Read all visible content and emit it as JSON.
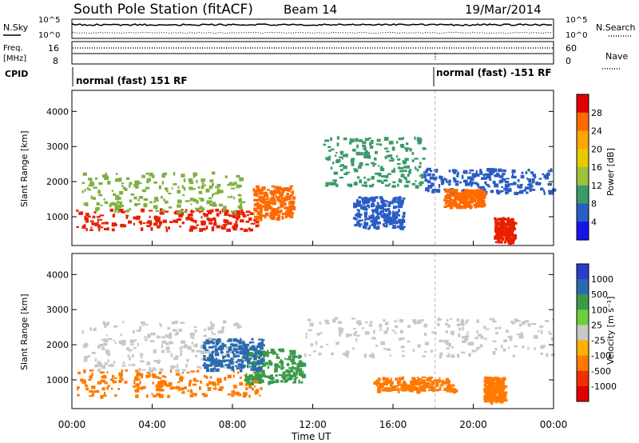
{
  "header": {
    "title": "South Pole Station (fitACF)",
    "beam": "Beam 14",
    "date": "19/Mar/2014"
  },
  "sky_panel": {
    "left_label": "N.Sky",
    "right_label": "N.Search",
    "left_ticks": [
      "10^5",
      "10^0"
    ],
    "right_ticks": [
      "10^5",
      "10^0"
    ]
  },
  "freq_panel": {
    "left_label_top": "Freq.",
    "left_label_bottom": "[MHz]",
    "right_label": "Nave",
    "left_ticks": [
      "16",
      "8"
    ],
    "right_ticks": [
      "60",
      "0"
    ]
  },
  "cpid_panel": {
    "label": "CPID",
    "segment1": "normal (fast) 151 RF",
    "segment2": "normal (fast) -151 RF"
  },
  "x_axis": {
    "label": "Time UT",
    "ticks": [
      "00:00",
      "04:00",
      "08:00",
      "12:00",
      "16:00",
      "20:00",
      "00:00"
    ]
  },
  "chart_data": [
    {
      "type": "heatmap",
      "title": "",
      "xlabel": "Time UT",
      "ylabel": "Slant Range [km]",
      "xlim": [
        0,
        24
      ],
      "ylim": [
        180,
        4600
      ],
      "yticks": [
        "1000",
        "2000",
        "3000",
        "4000"
      ],
      "colorbar": {
        "label": "Power [dB]",
        "ticks": [
          "28",
          "24",
          "20",
          "16",
          "12",
          "8",
          "4"
        ],
        "colors": [
          "#e00000",
          "#ff6a00",
          "#ffa600",
          "#e8c900",
          "#9ec23c",
          "#3c9a6a",
          "#2a5cc4",
          "#1414e6"
        ]
      },
      "bands": [
        {
          "t0": 0.2,
          "t1": 9.2,
          "r0": 650,
          "r1": 1250,
          "c": "#e82000"
        },
        {
          "t0": 0.5,
          "t1": 8.5,
          "r0": 1150,
          "r1": 2300,
          "c": "#7fb040"
        },
        {
          "t0": 9.0,
          "t1": 11.0,
          "r0": 950,
          "r1": 1900,
          "c": "#ff6a00"
        },
        {
          "t0": 12.5,
          "t1": 17.5,
          "r0": 1900,
          "r1": 3300,
          "c": "#3c9a6a"
        },
        {
          "t0": 14.0,
          "t1": 16.5,
          "r0": 700,
          "r1": 1600,
          "c": "#2a5cc4"
        },
        {
          "t0": 17.5,
          "t1": 24.0,
          "r0": 1700,
          "r1": 2400,
          "c": "#2a5cc4"
        },
        {
          "t0": 18.5,
          "t1": 20.5,
          "r0": 1300,
          "r1": 1800,
          "c": "#ff6a00"
        },
        {
          "t0": 21.0,
          "t1": 22.0,
          "r0": 300,
          "r1": 1000,
          "c": "#e82000"
        }
      ]
    },
    {
      "type": "heatmap",
      "title": "",
      "xlabel": "Time UT",
      "ylabel": "Slant Range [km]",
      "xlim": [
        0,
        24
      ],
      "ylim": [
        180,
        4600
      ],
      "yticks": [
        "1000",
        "2000",
        "3000",
        "4000"
      ],
      "colorbar": {
        "label": "Velocity [m s⁻¹]",
        "ticks": [
          "1000",
          "500",
          "100",
          "25",
          "-25",
          "-100",
          "-500",
          "-1000"
        ],
        "colors": [
          "#2a3cc8",
          "#2a6ab0",
          "#3a9a4a",
          "#6ecf3c",
          "#c8c8c8",
          "#ffb000",
          "#ff7a00",
          "#f03000",
          "#e00000"
        ]
      },
      "bands": [
        {
          "t0": 0.2,
          "t1": 9.5,
          "r0": 550,
          "r1": 1300,
          "c": "#ff7a00"
        },
        {
          "t0": 0.5,
          "t1": 8.5,
          "r0": 1300,
          "r1": 2700,
          "c": "#c8c8c8"
        },
        {
          "t0": 8.5,
          "t1": 11.5,
          "r0": 950,
          "r1": 1900,
          "c": "#3a9a4a"
        },
        {
          "t0": 6.5,
          "t1": 9.5,
          "r0": 1300,
          "r1": 2200,
          "c": "#2a6ab0"
        },
        {
          "t0": 11.5,
          "t1": 24.0,
          "r0": 1700,
          "r1": 2800,
          "c": "#c8c8c8"
        },
        {
          "t0": 15.0,
          "t1": 19.0,
          "r0": 700,
          "r1": 1100,
          "c": "#ff7a00"
        },
        {
          "t0": 20.5,
          "t1": 21.5,
          "r0": 400,
          "r1": 1100,
          "c": "#ff7a00"
        }
      ]
    }
  ]
}
